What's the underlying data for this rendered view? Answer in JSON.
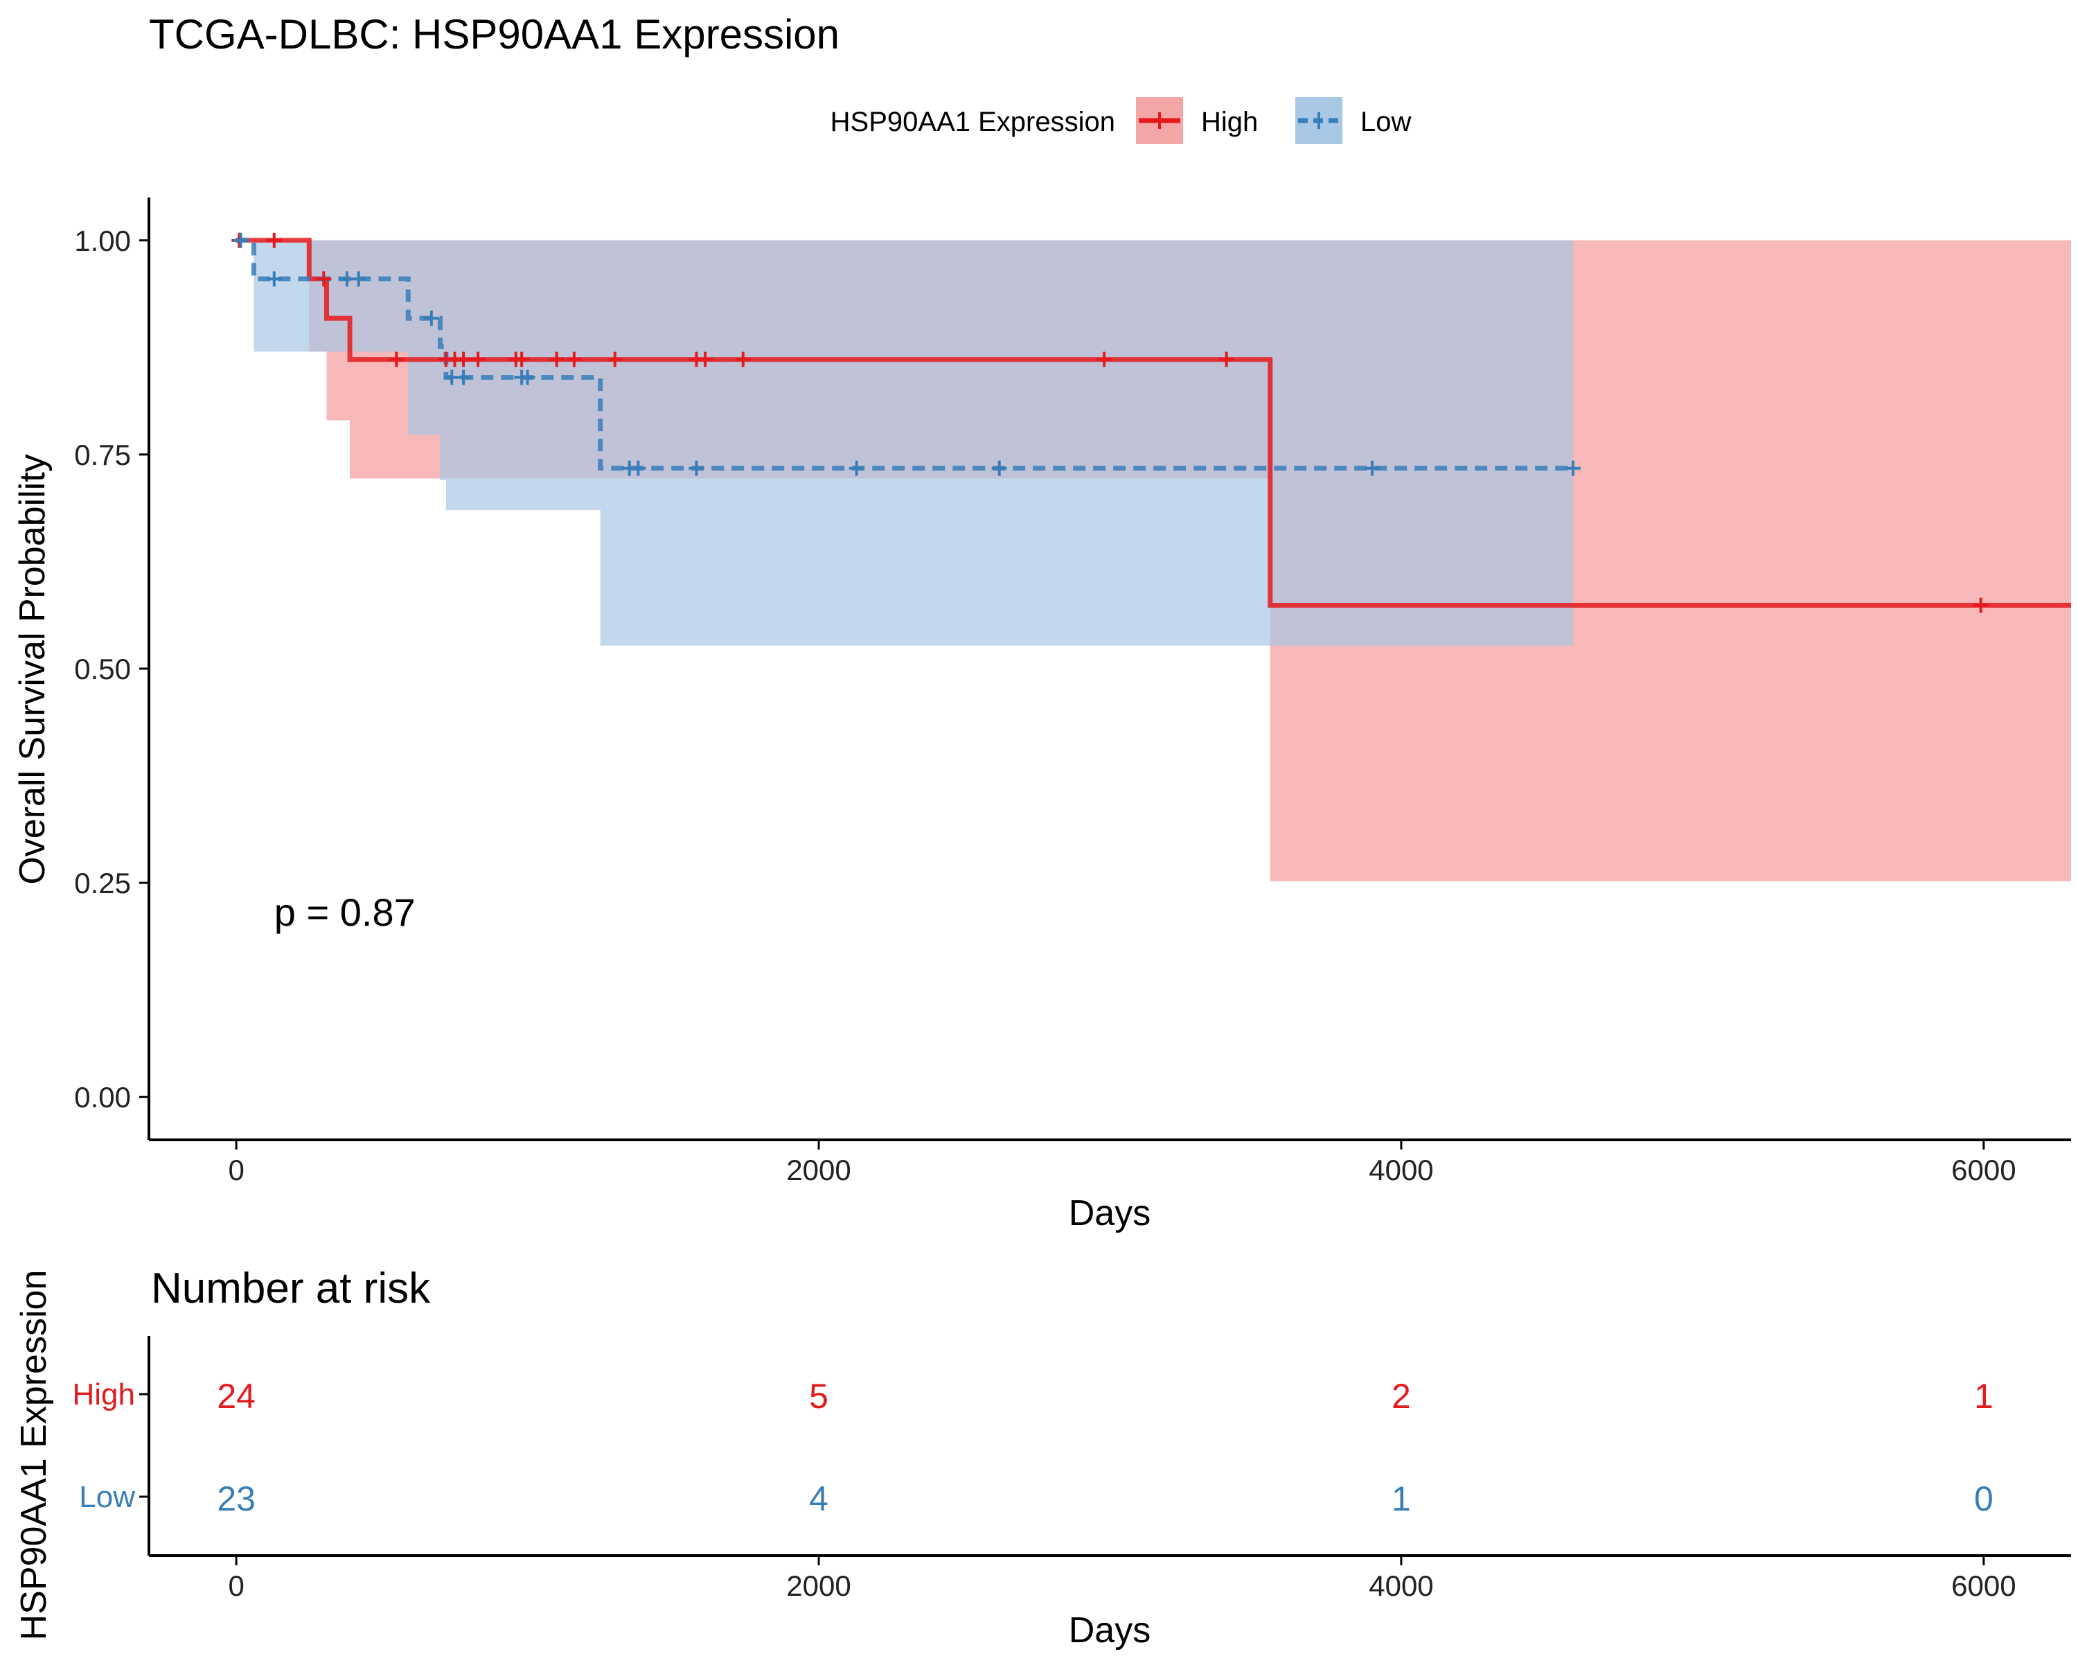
{
  "chart_data": [
    {
      "type": "line",
      "subtype": "kaplan-meier",
      "title": "TCGA-DLBC: HSP90AA1 Expression",
      "xlabel": "Days",
      "ylabel": "Overall Survival Probability",
      "xlim": [
        -300,
        6300
      ],
      "ylim": [
        -0.05,
        1.05
      ],
      "xticks": [
        0,
        2000,
        4000,
        6000
      ],
      "xtick_labels": [
        "0",
        "2000",
        "4000",
        "6000"
      ],
      "yticks": [
        0,
        0.25,
        0.5,
        0.75,
        1.0
      ],
      "ytick_labels": [
        "0.00",
        "0.25",
        "0.50",
        "0.75",
        "1.00"
      ],
      "grid": false,
      "legend": {
        "title": "HSP90AA1 Expression",
        "placement": "top"
      },
      "annotation": {
        "text": "p = 0.87",
        "x": 130,
        "y": 0.2
      },
      "series": [
        {
          "name": "High",
          "color": "#E41A1C",
          "fill": "#F4A6A7",
          "dash": "solid",
          "steps": [
            [
              0,
              1.0
            ],
            [
              250,
              0.955
            ],
            [
              310,
              0.909
            ],
            [
              390,
              0.861
            ],
            [
              3550,
              0.574
            ],
            [
              6300,
              0.574
            ]
          ],
          "ci_steps": [
            [
              0,
              1.0,
              1.0
            ],
            [
              250,
              0.87,
              1.0
            ],
            [
              310,
              0.79,
              1.0
            ],
            [
              390,
              0.722,
              1.0
            ],
            [
              3550,
              0.252,
              1.0
            ],
            [
              6300,
              0.252,
              1.0
            ]
          ],
          "censors": [
            [
              10,
              1.0
            ],
            [
              130,
              1.0
            ],
            [
              300,
              0.955
            ],
            [
              550,
              0.861
            ],
            [
              720,
              0.861
            ],
            [
              750,
              0.861
            ],
            [
              780,
              0.861
            ],
            [
              830,
              0.861
            ],
            [
              960,
              0.861
            ],
            [
              980,
              0.861
            ],
            [
              1100,
              0.861
            ],
            [
              1160,
              0.861
            ],
            [
              1300,
              0.861
            ],
            [
              1580,
              0.861
            ],
            [
              1610,
              0.861
            ],
            [
              1740,
              0.861
            ],
            [
              2980,
              0.861
            ],
            [
              3400,
              0.861
            ],
            [
              5990,
              0.574
            ]
          ]
        },
        {
          "name": "Low",
          "color": "#377EB8",
          "fill": "#A9C8E5",
          "dash": "dashed",
          "steps": [
            [
              0,
              1.0
            ],
            [
              60,
              0.955
            ],
            [
              590,
              0.909
            ],
            [
              700,
              0.876
            ],
            [
              720,
              0.84
            ],
            [
              1250,
              0.734
            ],
            [
              4590,
              0.734
            ]
          ],
          "ci_steps": [
            [
              0,
              1.0,
              1.0
            ],
            [
              60,
              0.87,
              1.0
            ],
            [
              590,
              0.773,
              1.0
            ],
            [
              700,
              0.72,
              1.0
            ],
            [
              720,
              0.685,
              1.0
            ],
            [
              1250,
              0.527,
              1.0
            ],
            [
              4590,
              0.527,
              1.0
            ]
          ],
          "censors": [
            [
              15,
              1.0
            ],
            [
              130,
              0.955
            ],
            [
              380,
              0.955
            ],
            [
              420,
              0.955
            ],
            [
              670,
              0.909
            ],
            [
              740,
              0.84
            ],
            [
              780,
              0.84
            ],
            [
              980,
              0.84
            ],
            [
              1000,
              0.84
            ],
            [
              1350,
              0.734
            ],
            [
              1380,
              0.734
            ],
            [
              1580,
              0.734
            ],
            [
              2130,
              0.734
            ],
            [
              2620,
              0.734
            ],
            [
              3900,
              0.734
            ],
            [
              4590,
              0.734
            ]
          ]
        }
      ]
    },
    {
      "type": "table",
      "title": "Number at risk",
      "ylabel": "HSP90AA1 Expression",
      "xlabel": "Days",
      "xlim": [
        -300,
        6300
      ],
      "xticks": [
        0,
        2000,
        4000,
        6000
      ],
      "xtick_labels": [
        "0",
        "2000",
        "4000",
        "6000"
      ],
      "rows": [
        {
          "name": "High",
          "color": "#E41A1C",
          "values": [
            "24",
            "5",
            "2",
            "1"
          ]
        },
        {
          "name": "Low",
          "color": "#377EB8",
          "values": [
            "23",
            "4",
            "1",
            "0"
          ]
        }
      ]
    }
  ]
}
